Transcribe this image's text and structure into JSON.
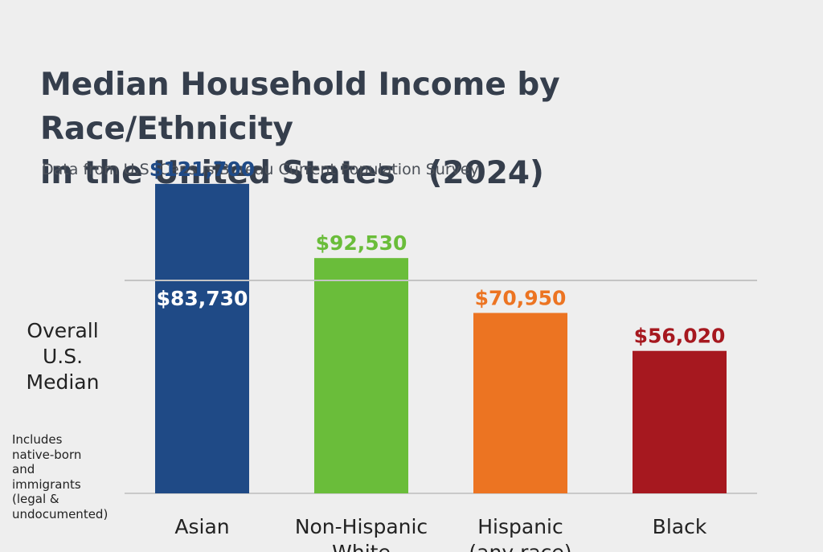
{
  "chart_data": {
    "type": "bar",
    "title_lines": [
      "Median Household Income by Race/Ethnicity",
      "in the United States   (2024)"
    ],
    "subtitle": "Data from U.S. Census Bureau Current Population Survey",
    "categories": [
      [
        "Asian"
      ],
      [
        "Non-Hispanic",
        "White"
      ],
      [
        "Hispanic",
        "(any race)"
      ],
      [
        "Black"
      ]
    ],
    "values": [
      121700,
      92530,
      70950,
      56020
    ],
    "value_labels": [
      "$121,700",
      "$92,530",
      "$70,950",
      "$56,020"
    ],
    "colors": [
      "#1f4a86",
      "#6abd3a",
      "#ec7422",
      "#a6181f"
    ],
    "reference_line": {
      "label_lines": [
        "Overall",
        "U.S.",
        "Median"
      ],
      "value": 83730,
      "value_label": "$83,730",
      "color": "#c4c4c4"
    },
    "note_lines": [
      "Includes",
      "native-born",
      "and",
      "immigrants",
      "(legal &",
      "undocumented)"
    ],
    "ylim": [
      0,
      136000
    ],
    "grid": false,
    "legend": "none"
  }
}
